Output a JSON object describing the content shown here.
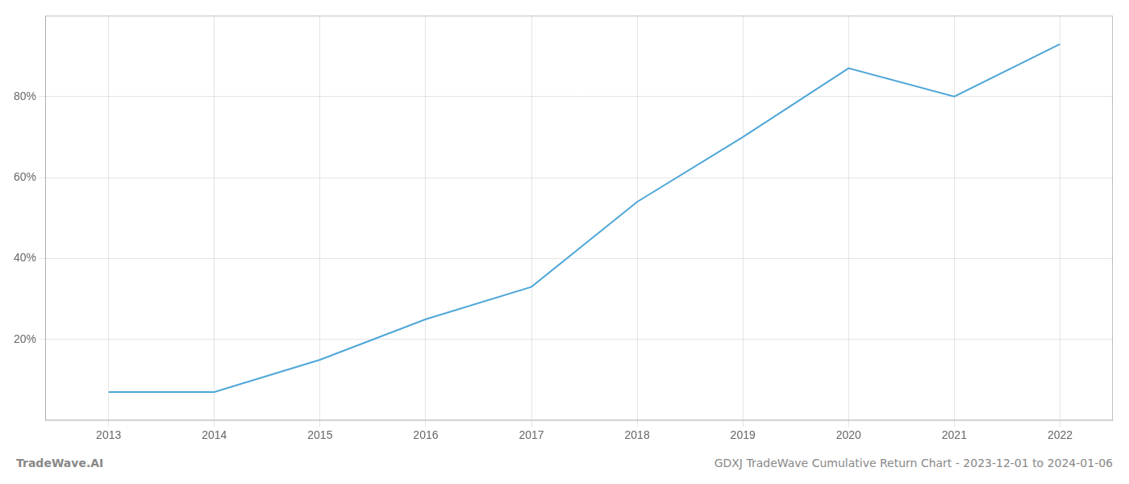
{
  "chart_data": {
    "type": "line",
    "x": [
      2013,
      2014,
      2015,
      2016,
      2017,
      2018,
      2019,
      2020,
      2021,
      2022
    ],
    "values": [
      7,
      7,
      15,
      25,
      33,
      54,
      70,
      87,
      80,
      93
    ],
    "color": "#4da6d8",
    "xlim": [
      2012.4,
      2022.5
    ],
    "xticks": [
      2013,
      2014,
      2015,
      2016,
      2017,
      2018,
      2019,
      2020,
      2021,
      2022
    ],
    "ylim": [
      0,
      100
    ],
    "yticks": [
      {
        "value": 20,
        "label": "20%"
      },
      {
        "value": 40,
        "label": "40%"
      },
      {
        "value": 60,
        "label": "60%"
      },
      {
        "value": 80,
        "label": "80%"
      }
    ],
    "grid": true,
    "annotations": [
      "TradeWave.AI",
      "GDXJ TradeWave Cumulative Return Chart - 2023-12-01 to 2024-01-06"
    ]
  }
}
